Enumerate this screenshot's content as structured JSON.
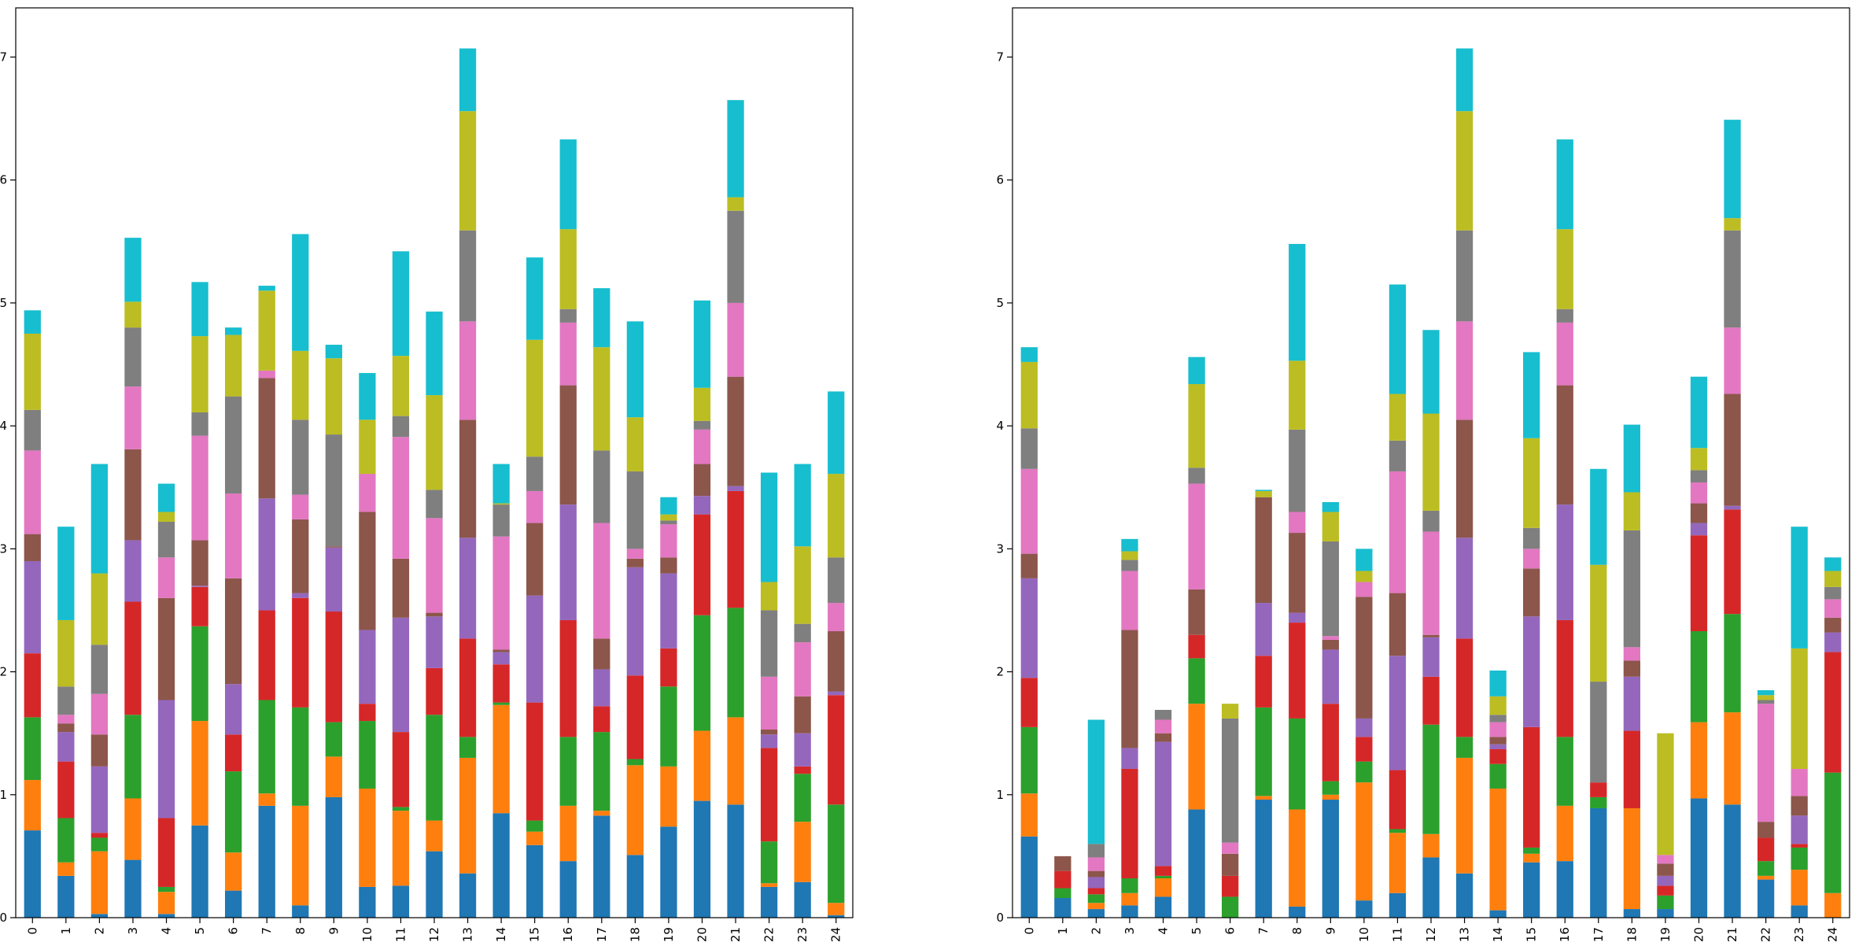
{
  "chart_data": [
    {
      "type": "bar",
      "stacked": true,
      "title": "",
      "xlabel": "",
      "ylabel": "",
      "ylim": [
        0,
        7.4
      ],
      "yticks": [
        0,
        1,
        2,
        3,
        4,
        5,
        6,
        7
      ],
      "grid": false,
      "legend": "none",
      "categories": [
        "0",
        "1",
        "2",
        "3",
        "4",
        "5",
        "6",
        "7",
        "8",
        "9",
        "10",
        "11",
        "12",
        "13",
        "14",
        "15",
        "16",
        "17",
        "18",
        "19",
        "20",
        "21",
        "22",
        "23",
        "24"
      ],
      "colors": [
        "#1f77b4",
        "#ff7f0e",
        "#2ca02c",
        "#d62728",
        "#9467bd",
        "#8c564b",
        "#e377c2",
        "#7f7f7f",
        "#bcbd22",
        "#17becf"
      ],
      "series": [
        {
          "values": [
            0.71,
            0.34,
            0.03,
            0.47,
            0.03,
            0.75,
            0.22,
            0.91,
            0.1,
            0.98,
            0.25,
            0.26,
            0.54,
            0.36,
            0.85,
            0.59,
            0.46,
            0.83,
            0.51,
            0.74,
            0.95,
            0.92,
            0.25,
            0.29,
            0.02
          ]
        },
        {
          "values": [
            0.41,
            0.11,
            0.51,
            0.5,
            0.18,
            0.85,
            0.31,
            0.1,
            0.81,
            0.33,
            0.8,
            0.61,
            0.25,
            0.94,
            0.88,
            0.11,
            0.45,
            0.04,
            0.73,
            0.49,
            0.57,
            0.71,
            0.03,
            0.49,
            0.1
          ]
        },
        {
          "values": [
            0.51,
            0.36,
            0.11,
            0.68,
            0.04,
            0.77,
            0.66,
            0.76,
            0.8,
            0.28,
            0.55,
            0.03,
            0.86,
            0.17,
            0.02,
            0.09,
            0.56,
            0.64,
            0.05,
            0.65,
            0.94,
            0.89,
            0.34,
            0.39,
            0.8
          ]
        },
        {
          "values": [
            0.52,
            0.46,
            0.04,
            0.92,
            0.56,
            0.32,
            0.3,
            0.73,
            0.89,
            0.9,
            0.14,
            0.61,
            0.38,
            0.8,
            0.31,
            0.96,
            0.95,
            0.21,
            0.68,
            0.31,
            0.82,
            0.95,
            0.76,
            0.06,
            0.89
          ]
        },
        {
          "values": [
            0.75,
            0.24,
            0.54,
            0.5,
            0.96,
            0.01,
            0.41,
            0.91,
            0.04,
            0.52,
            0.6,
            0.93,
            0.42,
            0.82,
            0.1,
            0.87,
            0.94,
            0.3,
            0.88,
            0.61,
            0.15,
            0.04,
            0.11,
            0.27,
            0.03
          ]
        },
        {
          "values": [
            0.22,
            0.07,
            0.26,
            0.74,
            0.83,
            0.37,
            0.86,
            0.98,
            0.6,
            0.01,
            0.96,
            0.48,
            0.03,
            0.96,
            0.02,
            0.59,
            0.97,
            0.25,
            0.07,
            0.13,
            0.26,
            0.89,
            0.04,
            0.3,
            0.49
          ]
        },
        {
          "values": [
            0.68,
            0.07,
            0.33,
            0.51,
            0.33,
            0.85,
            0.69,
            0.06,
            0.2,
            0.0,
            0.31,
            0.99,
            0.77,
            0.8,
            0.92,
            0.26,
            0.51,
            0.94,
            0.08,
            0.27,
            0.28,
            0.6,
            0.43,
            0.44,
            0.23
          ]
        },
        {
          "values": [
            0.33,
            0.23,
            0.4,
            0.48,
            0.29,
            0.19,
            0.79,
            0.0,
            0.61,
            0.91,
            0.0,
            0.17,
            0.23,
            0.74,
            0.26,
            0.28,
            0.11,
            0.59,
            0.63,
            0.03,
            0.07,
            0.75,
            0.54,
            0.15,
            0.37
          ]
        },
        {
          "values": [
            0.62,
            0.54,
            0.58,
            0.21,
            0.08,
            0.62,
            0.5,
            0.65,
            0.56,
            0.62,
            0.44,
            0.49,
            0.77,
            0.97,
            0.01,
            0.95,
            0.65,
            0.84,
            0.44,
            0.05,
            0.27,
            0.11,
            0.23,
            0.63,
            0.68
          ]
        },
        {
          "values": [
            0.19,
            0.76,
            0.89,
            0.52,
            0.23,
            0.44,
            0.06,
            0.04,
            0.95,
            0.11,
            0.38,
            0.85,
            0.68,
            0.51,
            0.32,
            0.67,
            0.73,
            0.48,
            0.78,
            0.14,
            0.71,
            0.79,
            0.89,
            0.67,
            0.67
          ]
        }
      ]
    },
    {
      "type": "bar",
      "stacked": true,
      "title": "",
      "xlabel": "",
      "ylabel": "",
      "ylim": [
        0,
        7.4
      ],
      "yticks": [
        0,
        1,
        2,
        3,
        4,
        5,
        6,
        7
      ],
      "grid": false,
      "legend": "none",
      "categories": [
        "0",
        "1",
        "2",
        "3",
        "4",
        "5",
        "6",
        "7",
        "8",
        "9",
        "10",
        "11",
        "12",
        "13",
        "14",
        "15",
        "16",
        "17",
        "18",
        "19",
        "20",
        "21",
        "22",
        "23",
        "24"
      ],
      "colors": [
        "#1f77b4",
        "#ff7f0e",
        "#2ca02c",
        "#d62728",
        "#9467bd",
        "#8c564b",
        "#e377c2",
        "#7f7f7f",
        "#bcbd22",
        "#17becf"
      ],
      "series": [
        {
          "values": [
            0.66,
            0.16,
            0.07,
            0.1,
            0.17,
            0.88,
            0.0,
            0.96,
            0.09,
            0.96,
            0.14,
            0.2,
            0.49,
            0.36,
            0.06,
            0.45,
            0.46,
            0.89,
            0.07,
            0.07,
            0.97,
            0.92,
            0.31,
            0.1,
            0.0
          ]
        },
        {
          "values": [
            0.35,
            0.0,
            0.05,
            0.1,
            0.15,
            0.86,
            0.0,
            0.03,
            0.79,
            0.04,
            0.96,
            0.49,
            0.19,
            0.94,
            0.99,
            0.07,
            0.45,
            0.0,
            0.82,
            0.0,
            0.62,
            0.75,
            0.03,
            0.29,
            0.2
          ]
        },
        {
          "values": [
            0.54,
            0.08,
            0.07,
            0.12,
            0.02,
            0.37,
            0.17,
            0.72,
            0.74,
            0.11,
            0.17,
            0.03,
            0.89,
            0.17,
            0.2,
            0.05,
            0.56,
            0.09,
            0.0,
            0.11,
            0.74,
            0.8,
            0.12,
            0.18,
            0.98
          ]
        },
        {
          "values": [
            0.4,
            0.14,
            0.05,
            0.89,
            0.08,
            0.19,
            0.17,
            0.42,
            0.78,
            0.63,
            0.2,
            0.48,
            0.39,
            0.8,
            0.12,
            0.98,
            0.95,
            0.12,
            0.63,
            0.08,
            0.78,
            0.85,
            0.19,
            0.03,
            0.98
          ]
        },
        {
          "values": [
            0.81,
            0.0,
            0.09,
            0.17,
            1.01,
            0.0,
            0.0,
            0.43,
            0.08,
            0.44,
            0.15,
            0.93,
            0.32,
            0.82,
            0.04,
            0.9,
            0.94,
            0.0,
            0.44,
            0.08,
            0.1,
            0.03,
            0.0,
            0.23,
            0.16
          ]
        },
        {
          "values": [
            0.2,
            0.12,
            0.05,
            0.96,
            0.07,
            0.37,
            0.18,
            0.86,
            0.65,
            0.08,
            0.99,
            0.51,
            0.02,
            0.96,
            0.06,
            0.39,
            0.97,
            0.0,
            0.13,
            0.1,
            0.16,
            0.91,
            0.13,
            0.16,
            0.12
          ]
        },
        {
          "values": [
            0.69,
            0.0,
            0.11,
            0.48,
            0.11,
            0.86,
            0.09,
            0.0,
            0.17,
            0.03,
            0.12,
            0.99,
            0.84,
            0.8,
            0.12,
            0.16,
            0.51,
            0.0,
            0.11,
            0.07,
            0.17,
            0.54,
            0.96,
            0.22,
            0.15
          ]
        },
        {
          "values": [
            0.33,
            0.0,
            0.11,
            0.09,
            0.08,
            0.13,
            1.01,
            0.0,
            0.67,
            0.77,
            0.0,
            0.25,
            0.17,
            0.74,
            0.06,
            0.17,
            0.11,
            0.82,
            0.95,
            0.0,
            0.1,
            0.79,
            0.03,
            0.0,
            0.1
          ]
        },
        {
          "values": [
            0.54,
            0.0,
            0.0,
            0.07,
            0.0,
            0.68,
            0.12,
            0.05,
            0.56,
            0.24,
            0.09,
            0.38,
            0.79,
            0.97,
            0.15,
            0.73,
            0.65,
            0.95,
            0.31,
            0.99,
            0.18,
            0.1,
            0.04,
            0.98,
            0.13
          ]
        },
        {
          "values": [
            0.12,
            0.0,
            1.01,
            0.1,
            0.0,
            0.22,
            0.0,
            0.01,
            0.95,
            0.08,
            0.18,
            0.89,
            0.68,
            0.51,
            0.21,
            0.7,
            0.73,
            0.78,
            0.55,
            0.0,
            0.58,
            0.8,
            0.04,
            0.99,
            0.11
          ]
        }
      ]
    }
  ]
}
